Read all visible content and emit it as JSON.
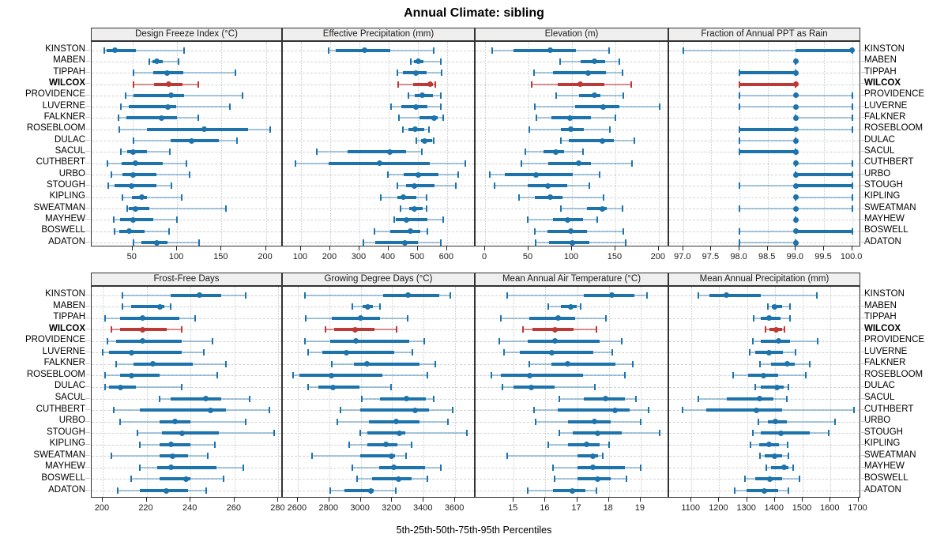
{
  "title": "Annual Climate: sibling",
  "footer_caption": "5th-25th-50th-75th-95th Percentiles",
  "highlighted_station": "WILCOX",
  "stations": [
    "KINSTON",
    "MABEN",
    "TIPPAH",
    "WILCOX",
    "PROVIDENCE",
    "LUVERNE",
    "FALKNER",
    "ROSEBLOOM",
    "DULAC",
    "SACUL",
    "CUTHBERT",
    "URBO",
    "STOUGH",
    "KIPLING",
    "SWEATMAN",
    "MAYHEW",
    "BOSWELL",
    "ADATON"
  ],
  "colors": {
    "series_blue": "#1d74ad",
    "series_blue_light": "rgba(29,116,173,0.38)",
    "highlight_red": "#bd3936",
    "highlight_red_light": "rgba(189,57,54,0.55)",
    "grid_line": "#c7ccd1",
    "guide_line": "#d2d2d2",
    "panel_border": "#333333",
    "header_bg": "#efefef"
  },
  "chart_data": [
    {
      "key": "design-freeze-index",
      "type": "percentile_dot_plot",
      "title": "Design Freeze Index (°C)",
      "grid": [
        0,
        0
      ],
      "xlim": [
        4,
        219
      ],
      "ticks": [
        50,
        100,
        150,
        200
      ],
      "tick_labels": [
        "50",
        "100",
        "150",
        "200"
      ],
      "percentiles_5_25_50_75_95": [
        [
          18,
          21,
          30,
          54,
          108
        ],
        [
          69,
          72,
          77,
          84,
          102
        ],
        [
          51,
          73,
          89,
          107,
          166
        ],
        [
          51,
          74,
          91,
          106,
          124
        ],
        [
          42,
          51,
          93,
          108,
          174
        ],
        [
          37,
          46,
          90,
          99,
          159
        ],
        [
          34,
          43,
          83,
          100,
          124
        ],
        [
          35,
          66,
          131,
          180,
          205
        ],
        [
          51,
          93,
          116,
          147,
          167
        ],
        [
          37,
          44,
          51,
          66,
          92
        ],
        [
          22,
          38,
          53,
          84,
          111
        ],
        [
          26,
          39,
          51,
          77,
          114
        ],
        [
          23,
          30,
          49,
          77,
          94
        ],
        [
          39,
          49,
          60,
          66,
          105
        ],
        [
          44,
          46,
          53,
          69,
          155
        ],
        [
          29,
          36,
          51,
          73,
          100
        ],
        [
          30,
          35,
          46,
          64,
          91
        ],
        [
          51,
          60,
          77,
          89,
          125
        ]
      ]
    },
    {
      "key": "effective-precipitation",
      "type": "percentile_dot_plot",
      "title": "Effective Precipitation (mm)",
      "grid": [
        0,
        1
      ],
      "xlim": [
        38,
        698
      ],
      "ticks": [
        100,
        200,
        300,
        400,
        500,
        600
      ],
      "tick_labels": [
        "100",
        "200",
        "300",
        "400",
        "500",
        "600"
      ],
      "percentiles_5_25_50_75_95": [
        [
          195,
          220,
          318,
          405,
          555
        ],
        [
          475,
          488,
          503,
          520,
          580
        ],
        [
          430,
          450,
          494,
          531,
          581
        ],
        [
          433,
          483,
          543,
          552,
          559
        ],
        [
          469,
          489,
          514,
          552,
          578
        ],
        [
          408,
          444,
          494,
          532,
          579
        ],
        [
          435,
          505,
          557,
          568,
          588
        ],
        [
          449,
          469,
          490,
          522,
          539
        ],
        [
          494,
          510,
          523,
          549,
          555
        ],
        [
          155,
          260,
          405,
          460,
          515
        ],
        [
          82,
          195,
          370,
          540,
          663
        ],
        [
          397,
          451,
          503,
          570,
          638
        ],
        [
          430,
          460,
          487,
          558,
          630
        ],
        [
          373,
          429,
          451,
          495,
          530
        ],
        [
          440,
          470,
          487,
          517,
          530
        ],
        [
          418,
          426,
          460,
          532,
          586
        ],
        [
          352,
          405,
          476,
          510,
          532
        ],
        [
          315,
          355,
          455,
          500,
          580
        ]
      ]
    },
    {
      "key": "elevation",
      "type": "percentile_dot_plot",
      "title": "Elevation (m)",
      "grid": [
        0,
        2
      ],
      "xlim": [
        -11,
        212
      ],
      "ticks": [
        0,
        50,
        100,
        150,
        200
      ],
      "tick_labels": [
        "0",
        "50",
        "100",
        "150",
        "200"
      ],
      "percentiles_5_25_50_75_95": [
        [
          8,
          33,
          75,
          105,
          143
        ],
        [
          86,
          110,
          126,
          138,
          155
        ],
        [
          56,
          78,
          119,
          139,
          158
        ],
        [
          54,
          84,
          110,
          137,
          168
        ],
        [
          82,
          108,
          126,
          133,
          159
        ],
        [
          57,
          104,
          136,
          155,
          201
        ],
        [
          59,
          76,
          98,
          122,
          150
        ],
        [
          51,
          87,
          99,
          114,
          144
        ],
        [
          87,
          96,
          135,
          148,
          172
        ],
        [
          46,
          67,
          81,
          91,
          113
        ],
        [
          42,
          73,
          108,
          122,
          169
        ],
        [
          5,
          23,
          59,
          101,
          132
        ],
        [
          11,
          49,
          72,
          95,
          120
        ],
        [
          39,
          57,
          75,
          89,
          136
        ],
        [
          87,
          117,
          135,
          140,
          158
        ],
        [
          49,
          78,
          95,
          113,
          129
        ],
        [
          57,
          72,
          99,
          117,
          159
        ],
        [
          58,
          74,
          100,
          120,
          162
        ]
      ]
    },
    {
      "key": "fraction-annual-ppt-as-rain",
      "type": "percentile_dot_plot",
      "title": "Fraction of Annual PPT as Rain",
      "grid": [
        0,
        3
      ],
      "xlim": [
        96.75,
        100.16
      ],
      "ticks": [
        97,
        97.5,
        98,
        98.5,
        99,
        99.5,
        100
      ],
      "tick_labels": [
        "97.0",
        "97.5",
        "98.0",
        "98.5",
        "99.0",
        "99.5",
        "100.0"
      ],
      "percentiles_5_25_50_75_95": [
        [
          97,
          99,
          100,
          100,
          100
        ],
        [
          99,
          99,
          99,
          99,
          99
        ],
        [
          98,
          98,
          99,
          99,
          99
        ],
        [
          98,
          98,
          99,
          99,
          99
        ],
        [
          98,
          99,
          99,
          99,
          100
        ],
        [
          98,
          99,
          99,
          99,
          100
        ],
        [
          99,
          99,
          99,
          99,
          100
        ],
        [
          98,
          98,
          99,
          99,
          100
        ],
        [
          98,
          99,
          99,
          99,
          99
        ],
        [
          98,
          98,
          99,
          99,
          99
        ],
        [
          99,
          99,
          99,
          99,
          100
        ],
        [
          99,
          99,
          99,
          100,
          100
        ],
        [
          98,
          99,
          99,
          100,
          100
        ],
        [
          99,
          99,
          99,
          99,
          100
        ],
        [
          98,
          99,
          99,
          99,
          100
        ],
        [
          99,
          99,
          99,
          99,
          99
        ],
        [
          98,
          99,
          99,
          100,
          100
        ],
        [
          98,
          99,
          99,
          99,
          99
        ]
      ]
    },
    {
      "key": "frost-free-days",
      "type": "percentile_dot_plot",
      "title": "Frost-Free Days",
      "grid": [
        1,
        0
      ],
      "xlim": [
        195,
        282
      ],
      "ticks": [
        200,
        220,
        240,
        260,
        280
      ],
      "tick_labels": [
        "200",
        "220",
        "240",
        "260",
        "280"
      ],
      "percentiles_5_25_50_75_95": [
        [
          209,
          231,
          244,
          254,
          265
        ],
        [
          209,
          213,
          226,
          228,
          231
        ],
        [
          201,
          208,
          218,
          235,
          242
        ],
        [
          204,
          208,
          218,
          229,
          236
        ],
        [
          202,
          206,
          218,
          236,
          250
        ],
        [
          200,
          203,
          213,
          236,
          246
        ],
        [
          206,
          214,
          223,
          241,
          256
        ],
        [
          201,
          208,
          213,
          226,
          252
        ],
        [
          201,
          203,
          208,
          215,
          236
        ],
        [
          226,
          231,
          247,
          254,
          267
        ],
        [
          205,
          217,
          249,
          256,
          276
        ],
        [
          208,
          226,
          233,
          240,
          265
        ],
        [
          216,
          227,
          236,
          253,
          278
        ],
        [
          217,
          226,
          231,
          240,
          251
        ],
        [
          204,
          226,
          232,
          239,
          248
        ],
        [
          217,
          225,
          231,
          252,
          264
        ],
        [
          213,
          226,
          238,
          240,
          255
        ],
        [
          207,
          217,
          229,
          239,
          247
        ]
      ]
    },
    {
      "key": "growing-degree-days",
      "type": "percentile_dot_plot",
      "title": "Growing Degree Days (°C)",
      "grid": [
        1,
        1
      ],
      "xlim": [
        2505,
        3730
      ],
      "ticks": [
        2600,
        2800,
        3000,
        3200,
        3400,
        3600
      ],
      "tick_labels": [
        "2600",
        "2800",
        "3000",
        "3200",
        "3400",
        "3600"
      ],
      "percentiles_5_25_50_75_95": [
        [
          2645,
          3140,
          3300,
          3500,
          3570
        ],
        [
          2945,
          3010,
          3045,
          3080,
          3120
        ],
        [
          2650,
          2815,
          3000,
          3125,
          3300
        ],
        [
          2775,
          2830,
          2965,
          3090,
          3230
        ],
        [
          2645,
          2805,
          2970,
          3310,
          3405
        ],
        [
          2665,
          2755,
          2910,
          3215,
          3330
        ],
        [
          2815,
          2955,
          3040,
          3375,
          3475
        ],
        [
          2570,
          2610,
          2815,
          3140,
          3425
        ],
        [
          2665,
          2730,
          2825,
          2990,
          3195
        ],
        [
          3005,
          3120,
          3290,
          3415,
          3465
        ],
        [
          2870,
          2995,
          3345,
          3435,
          3585
        ],
        [
          2850,
          3050,
          3225,
          3375,
          3555
        ],
        [
          2995,
          3040,
          3245,
          3285,
          3675
        ],
        [
          2925,
          3040,
          3160,
          3235,
          3325
        ],
        [
          2690,
          2995,
          3195,
          3220,
          3290
        ],
        [
          2945,
          3115,
          3210,
          3410,
          3510
        ],
        [
          2975,
          3070,
          3240,
          3325,
          3425
        ],
        [
          2805,
          2895,
          3065,
          3085,
          3225
        ]
      ]
    },
    {
      "key": "mean-annual-air-temperature",
      "type": "percentile_dot_plot",
      "title": "Mean Annual Air Temperature (°C)",
      "grid": [
        1,
        2
      ],
      "xlim": [
        13.8,
        19.9
      ],
      "ticks": [
        15,
        16,
        17,
        18,
        19
      ],
      "tick_labels": [
        "15",
        "16",
        "17",
        "18",
        "19"
      ],
      "percentiles_5_25_50_75_95": [
        [
          14.8,
          17.2,
          18.1,
          18.8,
          19.2
        ],
        [
          16.1,
          16.5,
          16.8,
          17.0,
          17.1
        ],
        [
          14.6,
          15.5,
          16.4,
          16.95,
          17.9
        ],
        [
          15.3,
          15.6,
          16.3,
          16.9,
          17.6
        ],
        [
          14.55,
          15.45,
          16.3,
          17.7,
          18.4
        ],
        [
          14.7,
          15.2,
          16.2,
          17.5,
          18.1
        ],
        [
          15.5,
          16.2,
          16.7,
          18.2,
          18.75
        ],
        [
          14.3,
          14.6,
          15.5,
          17.2,
          18.5
        ],
        [
          14.65,
          15.0,
          15.55,
          16.3,
          17.55
        ],
        [
          16.45,
          17.2,
          17.9,
          18.5,
          18.85
        ],
        [
          15.65,
          16.4,
          18.2,
          18.65,
          19.25
        ],
        [
          15.7,
          16.7,
          17.55,
          18.05,
          19.0
        ],
        [
          16.45,
          16.85,
          17.65,
          18.4,
          19.6
        ],
        [
          16.1,
          16.7,
          17.3,
          17.7,
          18.0
        ],
        [
          14.8,
          17.0,
          17.5,
          17.65,
          17.8
        ],
        [
          16.25,
          17.0,
          17.5,
          18.5,
          19.0
        ],
        [
          16.3,
          17.0,
          17.65,
          18.05,
          18.55
        ],
        [
          15.45,
          16.25,
          16.85,
          17.25,
          17.6
        ]
      ]
    },
    {
      "key": "mean-annual-precipitation",
      "type": "percentile_dot_plot",
      "title": "Mean Annual Precipitation (mm)",
      "grid": [
        1,
        3
      ],
      "xlim": [
        1020,
        1710
      ],
      "ticks": [
        1100,
        1200,
        1300,
        1400,
        1500,
        1600,
        1700
      ],
      "tick_labels": [
        "1100",
        "1200",
        "1300",
        "1400",
        "1500",
        "1600",
        "1700"
      ],
      "percentiles_5_25_50_75_95": [
        [
          1125,
          1165,
          1225,
          1350,
          1550
        ],
        [
          1375,
          1390,
          1400,
          1425,
          1455
        ],
        [
          1325,
          1350,
          1380,
          1420,
          1455
        ],
        [
          1365,
          1380,
          1405,
          1425,
          1435
        ],
        [
          1320,
          1350,
          1413,
          1455,
          1553
        ],
        [
          1310,
          1330,
          1380,
          1430,
          1473
        ],
        [
          1345,
          1385,
          1444,
          1472,
          1525
        ],
        [
          1250,
          1305,
          1360,
          1413,
          1512
        ],
        [
          1330,
          1350,
          1408,
          1432,
          1450
        ],
        [
          1125,
          1226,
          1344,
          1394,
          1444
        ],
        [
          1067,
          1152,
          1335,
          1427,
          1683
        ],
        [
          1342,
          1375,
          1403,
          1444,
          1615
        ],
        [
          1320,
          1350,
          1422,
          1527,
          1593
        ],
        [
          1313,
          1344,
          1380,
          1416,
          1446
        ],
        [
          1345,
          1364,
          1398,
          1425,
          1448
        ],
        [
          1368,
          1387,
          1432,
          1449,
          1465
        ],
        [
          1292,
          1328,
          1382,
          1427,
          1489
        ],
        [
          1256,
          1299,
          1363,
          1413,
          1448
        ]
      ]
    }
  ]
}
